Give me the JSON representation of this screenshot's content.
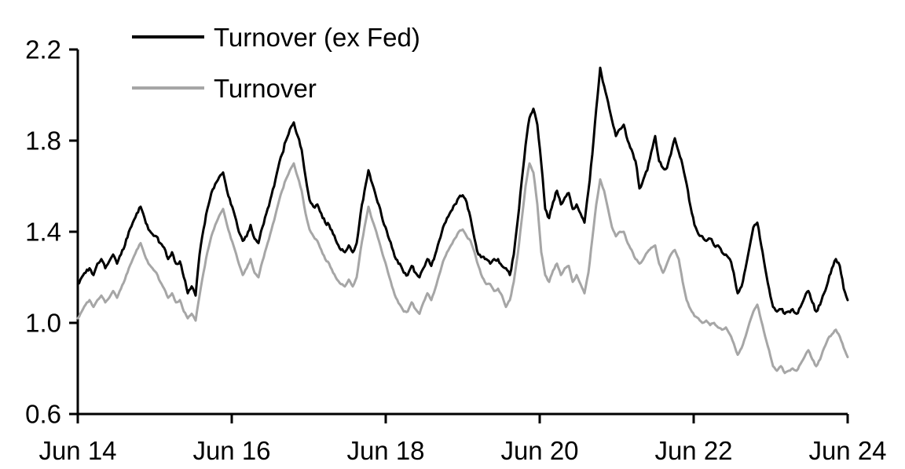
{
  "chart_data": {
    "type": "line",
    "title": "",
    "background": "#ffffff",
    "axis_color": "#000000",
    "grid": false,
    "legend": {
      "position": "inside-top-left",
      "entries": [
        "Turnover (ex Fed)",
        "Turnover"
      ]
    },
    "x_axis": {
      "tick_labels": [
        "Jun 14",
        "Jun 16",
        "Jun 18",
        "Jun 20",
        "Jun 22",
        "Jun 24"
      ],
      "note_visible_range": "Jun 2014 to Jun 2024, ticks every 2 years"
    },
    "y_axis": {
      "tick_labels": [
        "0.6",
        "1.0",
        "1.4",
        "1.8",
        "2.2"
      ],
      "tick_values": [
        0.6,
        1.0,
        1.4,
        1.8,
        2.2
      ],
      "ylim": [
        0.6,
        2.2
      ]
    },
    "series": [
      {
        "name": "Turnover (ex Fed)",
        "color": "#000000",
        "values": [
          1.17,
          1.2,
          1.22,
          1.24,
          1.21,
          1.26,
          1.28,
          1.24,
          1.27,
          1.3,
          1.26,
          1.3,
          1.34,
          1.4,
          1.44,
          1.48,
          1.51,
          1.46,
          1.41,
          1.39,
          1.38,
          1.35,
          1.33,
          1.28,
          1.31,
          1.26,
          1.27,
          1.2,
          1.13,
          1.16,
          1.12,
          1.3,
          1.41,
          1.5,
          1.57,
          1.61,
          1.64,
          1.66,
          1.58,
          1.52,
          1.47,
          1.4,
          1.36,
          1.38,
          1.43,
          1.37,
          1.35,
          1.42,
          1.48,
          1.54,
          1.6,
          1.68,
          1.74,
          1.8,
          1.85,
          1.88,
          1.82,
          1.76,
          1.64,
          1.54,
          1.51,
          1.52,
          1.48,
          1.44,
          1.43,
          1.39,
          1.35,
          1.32,
          1.31,
          1.34,
          1.31,
          1.35,
          1.48,
          1.58,
          1.67,
          1.61,
          1.55,
          1.5,
          1.43,
          1.38,
          1.33,
          1.28,
          1.26,
          1.22,
          1.21,
          1.25,
          1.22,
          1.2,
          1.24,
          1.28,
          1.25,
          1.3,
          1.36,
          1.42,
          1.46,
          1.49,
          1.52,
          1.55,
          1.56,
          1.53,
          1.46,
          1.37,
          1.3,
          1.29,
          1.28,
          1.26,
          1.28,
          1.28,
          1.25,
          1.24,
          1.21,
          1.3,
          1.45,
          1.62,
          1.78,
          1.9,
          1.94,
          1.87,
          1.7,
          1.5,
          1.46,
          1.53,
          1.58,
          1.52,
          1.55,
          1.57,
          1.5,
          1.52,
          1.48,
          1.44,
          1.58,
          1.74,
          1.94,
          2.12,
          2.04,
          1.97,
          1.89,
          1.82,
          1.85,
          1.87,
          1.8,
          1.76,
          1.71,
          1.59,
          1.63,
          1.67,
          1.75,
          1.82,
          1.71,
          1.68,
          1.68,
          1.74,
          1.81,
          1.75,
          1.69,
          1.61,
          1.51,
          1.43,
          1.39,
          1.38,
          1.36,
          1.37,
          1.34,
          1.34,
          1.31,
          1.3,
          1.28,
          1.22,
          1.13,
          1.16,
          1.24,
          1.33,
          1.42,
          1.44,
          1.34,
          1.24,
          1.15,
          1.07,
          1.05,
          1.06,
          1.04,
          1.05,
          1.06,
          1.04,
          1.07,
          1.11,
          1.14,
          1.09,
          1.05,
          1.08,
          1.13,
          1.18,
          1.24,
          1.28,
          1.25,
          1.15,
          1.1
        ]
      },
      {
        "name": "Turnover",
        "color": "#a6a6a6",
        "values": [
          1.02,
          1.05,
          1.08,
          1.1,
          1.07,
          1.1,
          1.12,
          1.09,
          1.11,
          1.14,
          1.11,
          1.15,
          1.19,
          1.24,
          1.28,
          1.32,
          1.35,
          1.3,
          1.26,
          1.24,
          1.22,
          1.18,
          1.15,
          1.11,
          1.13,
          1.09,
          1.1,
          1.05,
          1.02,
          1.04,
          1.01,
          1.12,
          1.22,
          1.31,
          1.38,
          1.43,
          1.47,
          1.5,
          1.43,
          1.37,
          1.32,
          1.26,
          1.21,
          1.24,
          1.28,
          1.22,
          1.2,
          1.27,
          1.33,
          1.39,
          1.45,
          1.52,
          1.58,
          1.63,
          1.67,
          1.7,
          1.64,
          1.58,
          1.48,
          1.41,
          1.38,
          1.36,
          1.32,
          1.28,
          1.26,
          1.22,
          1.19,
          1.17,
          1.16,
          1.19,
          1.16,
          1.2,
          1.32,
          1.42,
          1.51,
          1.45,
          1.4,
          1.34,
          1.28,
          1.22,
          1.16,
          1.11,
          1.08,
          1.05,
          1.05,
          1.09,
          1.06,
          1.04,
          1.09,
          1.13,
          1.1,
          1.15,
          1.21,
          1.27,
          1.31,
          1.34,
          1.37,
          1.4,
          1.41,
          1.38,
          1.36,
          1.31,
          1.25,
          1.2,
          1.17,
          1.17,
          1.14,
          1.15,
          1.12,
          1.07,
          1.1,
          1.18,
          1.3,
          1.45,
          1.6,
          1.7,
          1.66,
          1.52,
          1.31,
          1.21,
          1.18,
          1.23,
          1.26,
          1.21,
          1.24,
          1.25,
          1.18,
          1.21,
          1.17,
          1.13,
          1.22,
          1.37,
          1.52,
          1.63,
          1.58,
          1.5,
          1.42,
          1.38,
          1.4,
          1.4,
          1.35,
          1.32,
          1.28,
          1.26,
          1.28,
          1.31,
          1.33,
          1.34,
          1.26,
          1.22,
          1.26,
          1.3,
          1.32,
          1.28,
          1.18,
          1.1,
          1.06,
          1.03,
          1.02,
          1.0,
          1.01,
          0.99,
          1.0,
          0.98,
          0.97,
          0.98,
          0.95,
          0.91,
          0.86,
          0.89,
          0.94,
          1.0,
          1.05,
          1.08,
          1.01,
          0.94,
          0.88,
          0.81,
          0.79,
          0.81,
          0.78,
          0.79,
          0.8,
          0.79,
          0.82,
          0.85,
          0.88,
          0.84,
          0.81,
          0.84,
          0.89,
          0.93,
          0.95,
          0.97,
          0.94,
          0.89,
          0.85
        ]
      }
    ]
  }
}
